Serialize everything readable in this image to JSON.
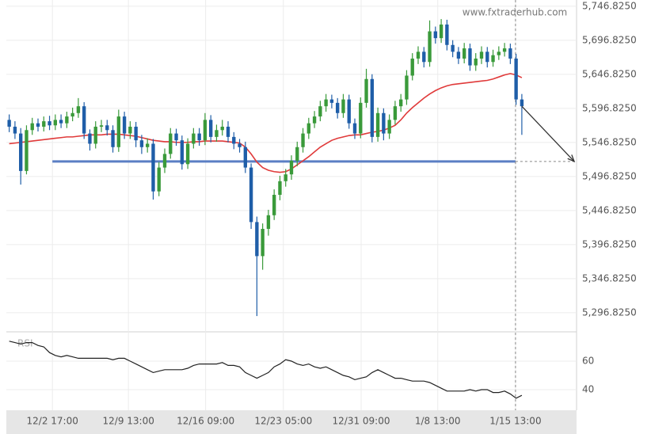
{
  "chart_data": {
    "type": "candlestick",
    "watermark": "www.fxtraderhub.com",
    "xlim": [
      -0.5,
      98.5
    ],
    "xticks": [
      {
        "value": 7.5,
        "label": "12/2 17:00"
      },
      {
        "value": 20.7,
        "label": "12/9 13:00"
      },
      {
        "value": 34.1,
        "label": "12/16 09:00"
      },
      {
        "value": 47.6,
        "label": "12/23 05:00"
      },
      {
        "value": 61.1,
        "label": "12/31 09:00"
      },
      {
        "value": 74.4,
        "label": "1/8 13:00"
      },
      {
        "value": 87.9,
        "label": "1/15 13:00"
      }
    ],
    "ylim": [
      5270,
      5756
    ],
    "yticks": [
      {
        "value": 5746.825,
        "label": "5,746.8250"
      },
      {
        "value": 5696.825,
        "label": "5,696.8250"
      },
      {
        "value": 5646.825,
        "label": "5,646.8250"
      },
      {
        "value": 5596.825,
        "label": "5,596.8250"
      },
      {
        "value": 5546.825,
        "label": "5,546.8250"
      },
      {
        "value": 5496.825,
        "label": "5,496.8250"
      },
      {
        "value": 5446.825,
        "label": "5,446.8250"
      },
      {
        "value": 5396.825,
        "label": "5,396.8250"
      },
      {
        "value": 5346.825,
        "label": "5,346.8250"
      },
      {
        "value": 5296.825,
        "label": "5,296.8250"
      }
    ],
    "grid": true,
    "up_color": "#3a9a3a",
    "down_color": "#1f5ea8",
    "open": [
      5580,
      5570,
      5560,
      5505,
      5565,
      5575,
      5570,
      5578,
      5572,
      5580,
      5575,
      5585,
      5590,
      5600,
      5560,
      5545,
      5570,
      5572,
      5565,
      5540,
      5585,
      5560,
      5570,
      5550,
      5540,
      5545,
      5475,
      5510,
      5530,
      5560,
      5550,
      5515,
      5545,
      5560,
      5550,
      5580,
      5555,
      5565,
      5570,
      5555,
      5545,
      5540,
      5510,
      5430,
      5380,
      5420,
      5440,
      5470,
      5490,
      5500,
      5520,
      5540,
      5560,
      5575,
      5585,
      5600,
      5610,
      5605,
      5590,
      5610,
      5575,
      5560,
      5605,
      5640,
      5555,
      5590,
      5560,
      5580,
      5600,
      5610,
      5645,
      5670,
      5680,
      5665,
      5710,
      5700,
      5720,
      5690,
      5680,
      5670,
      5685,
      5660,
      5670,
      5680,
      5665,
      5675,
      5680,
      5685,
      5670,
      5610
    ],
    "high": [
      5588,
      5578,
      5568,
      5572,
      5583,
      5582,
      5585,
      5586,
      5588,
      5588,
      5592,
      5598,
      5612,
      5606,
      5566,
      5578,
      5580,
      5580,
      5572,
      5595,
      5592,
      5578,
      5577,
      5558,
      5553,
      5552,
      5518,
      5538,
      5568,
      5567,
      5557,
      5553,
      5568,
      5568,
      5590,
      5587,
      5573,
      5580,
      5578,
      5562,
      5552,
      5548,
      5516,
      5438,
      5428,
      5448,
      5478,
      5498,
      5508,
      5528,
      5548,
      5568,
      5583,
      5593,
      5608,
      5618,
      5617,
      5612,
      5618,
      5617,
      5582,
      5613,
      5655,
      5647,
      5598,
      5597,
      5588,
      5608,
      5618,
      5653,
      5678,
      5688,
      5687,
      5726,
      5717,
      5728,
      5727,
      5697,
      5687,
      5693,
      5692,
      5678,
      5688,
      5687,
      5683,
      5688,
      5693,
      5692,
      5677,
      5618
    ],
    "low": [
      5562,
      5552,
      5485,
      5500,
      5558,
      5563,
      5563,
      5565,
      5565,
      5568,
      5568,
      5578,
      5583,
      5552,
      5535,
      5538,
      5562,
      5557,
      5532,
      5533,
      5552,
      5552,
      5540,
      5530,
      5532,
      5463,
      5468,
      5502,
      5523,
      5542,
      5507,
      5508,
      5538,
      5542,
      5543,
      5547,
      5548,
      5557,
      5547,
      5537,
      5532,
      5502,
      5420,
      5292,
      5360,
      5410,
      5433,
      5462,
      5482,
      5492,
      5512,
      5532,
      5552,
      5568,
      5578,
      5592,
      5597,
      5582,
      5583,
      5567,
      5552,
      5553,
      5598,
      5547,
      5548,
      5550,
      5552,
      5573,
      5592,
      5602,
      5638,
      5662,
      5657,
      5658,
      5692,
      5693,
      5682,
      5672,
      5662,
      5663,
      5652,
      5652,
      5662,
      5657,
      5658,
      5668,
      5673,
      5662,
      5602,
      5558
    ],
    "close": [
      5570,
      5560,
      5505,
      5565,
      5575,
      5570,
      5578,
      5572,
      5580,
      5575,
      5585,
      5590,
      5600,
      5560,
      5545,
      5570,
      5572,
      5565,
      5540,
      5585,
      5560,
      5570,
      5550,
      5540,
      5545,
      5475,
      5510,
      5530,
      5560,
      5550,
      5515,
      5545,
      5560,
      5550,
      5580,
      5555,
      5565,
      5570,
      5555,
      5545,
      5540,
      5510,
      5430,
      5380,
      5420,
      5440,
      5470,
      5490,
      5500,
      5520,
      5540,
      5560,
      5575,
      5585,
      5600,
      5610,
      5605,
      5590,
      5610,
      5575,
      5560,
      5605,
      5640,
      5555,
      5590,
      5560,
      5580,
      5600,
      5610,
      5645,
      5670,
      5680,
      5665,
      5710,
      5700,
      5720,
      5690,
      5680,
      5670,
      5685,
      5660,
      5670,
      5680,
      5665,
      5675,
      5680,
      5685,
      5670,
      5610,
      5600
    ],
    "ma": {
      "color": "#e03a3a",
      "values": [
        5545,
        5546,
        5547,
        5548,
        5549,
        5550,
        5551,
        5552,
        5553,
        5554,
        5555,
        5555,
        5556,
        5557,
        5558,
        5558,
        5558,
        5559,
        5559,
        5559,
        5558,
        5557,
        5556,
        5554,
        5552,
        5550,
        5549,
        5548,
        5548,
        5547,
        5547,
        5547,
        5548,
        5548,
        5549,
        5549,
        5549,
        5549,
        5548,
        5547,
        5546,
        5540,
        5530,
        5518,
        5510,
        5506,
        5504,
        5503,
        5504,
        5508,
        5514,
        5520,
        5526,
        5533,
        5540,
        5545,
        5550,
        5553,
        5555,
        5557,
        5558,
        5558,
        5560,
        5562,
        5563,
        5565,
        5568,
        5572,
        5580,
        5590,
        5598,
        5605,
        5612,
        5618,
        5623,
        5627,
        5630,
        5632,
        5633,
        5634,
        5635,
        5636,
        5637,
        5638,
        5640,
        5643,
        5646,
        5648,
        5646,
        5642
      ]
    },
    "support_level": 5519,
    "support_color": "#5b7fc4",
    "rsi": {
      "label": "RSI",
      "color": "#222222",
      "ylim": [
        25,
        80
      ],
      "yticks": [
        60,
        40
      ],
      "values": [
        74,
        73,
        72,
        73,
        73,
        71,
        70,
        66,
        64,
        63,
        64,
        63,
        62,
        62,
        62,
        62,
        62,
        62,
        61,
        62,
        62,
        60,
        58,
        56,
        54,
        52,
        53,
        54,
        54,
        54,
        54,
        55,
        57,
        58,
        58,
        58,
        58,
        59,
        57,
        57,
        56,
        52,
        50,
        48,
        50,
        52,
        56,
        58,
        61,
        60,
        58,
        57,
        58,
        56,
        55,
        56,
        54,
        52,
        50,
        49,
        47,
        48,
        49,
        52,
        54,
        52,
        50,
        48,
        48,
        47,
        46,
        46,
        46,
        45,
        43,
        41,
        39,
        39,
        39,
        39,
        40,
        39,
        40,
        40,
        38,
        38,
        39,
        37,
        34,
        36
      ]
    }
  }
}
